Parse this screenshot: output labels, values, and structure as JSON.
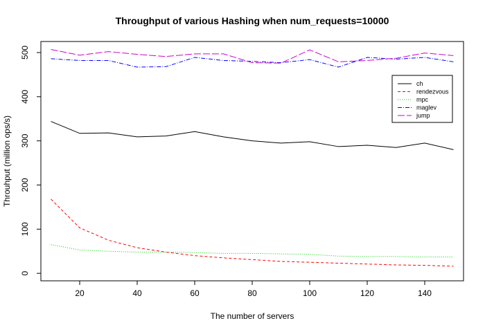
{
  "chart_data": {
    "type": "line",
    "title": "Throughput of various Hashing when num_requests=10000",
    "xlabel": "The number of servers",
    "ylabel": "Throuhput (million ops/s)",
    "x": [
      10,
      20,
      30,
      40,
      50,
      60,
      70,
      80,
      90,
      100,
      110,
      120,
      130,
      140,
      150
    ],
    "xticks": [
      20,
      40,
      60,
      80,
      100,
      120,
      140
    ],
    "yticks": [
      0,
      100,
      200,
      300,
      400,
      500
    ],
    "xlim": [
      6.5,
      153.5
    ],
    "ylim": [
      -17,
      525
    ],
    "grid": false,
    "legend_position": "right",
    "series": [
      {
        "name": "ch",
        "color": "#000000",
        "dash": "",
        "values": [
          344,
          317,
          318,
          309,
          311,
          321,
          309,
          300,
          295,
          298,
          287,
          290,
          285,
          295,
          280
        ]
      },
      {
        "name": "rendezvous",
        "color": "#ff0000",
        "dash": "4,3",
        "values": [
          168,
          103,
          75,
          58,
          48,
          40,
          35,
          31,
          27,
          25,
          23,
          21,
          19,
          18,
          16
        ]
      },
      {
        "name": "mpc",
        "color": "#00cc00",
        "dash": "1,2",
        "values": [
          65,
          53,
          50,
          48,
          48,
          47,
          45,
          45,
          44,
          43,
          39,
          38,
          38,
          37,
          37
        ]
      },
      {
        "name": "maglev",
        "color": "#0000ff",
        "dash": "6,2,1,2",
        "values": [
          486,
          482,
          482,
          467,
          468,
          489,
          482,
          480,
          477,
          484,
          467,
          489,
          485,
          489,
          479
        ]
      },
      {
        "name": "jump",
        "color": "#cc00cc",
        "dash": "10,3",
        "values": [
          507,
          494,
          502,
          496,
          491,
          497,
          497,
          477,
          476,
          506,
          479,
          482,
          487,
          499,
          493
        ]
      }
    ]
  }
}
